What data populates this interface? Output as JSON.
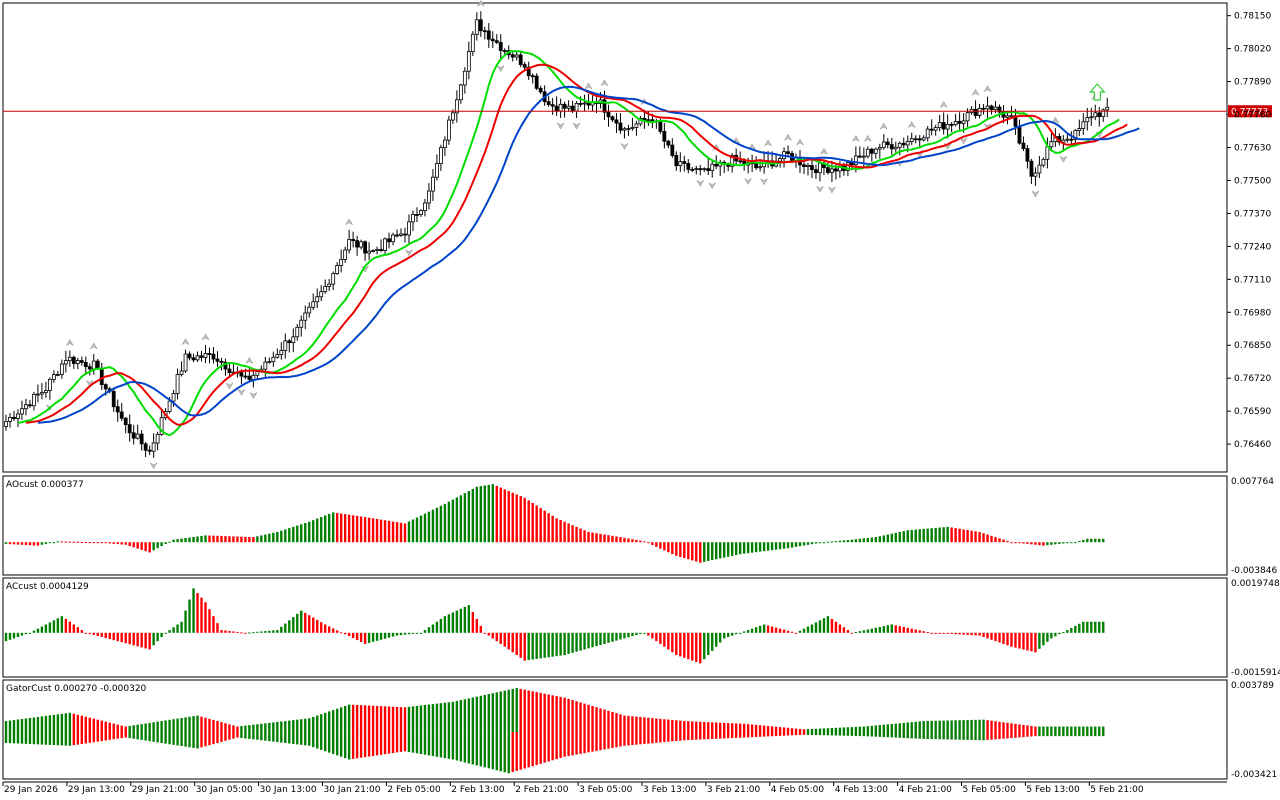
{
  "chart_data": [
    {
      "type": "candlestick",
      "panel": "main",
      "x_labels": [
        "29 Jan 2026",
        "29 Jan 13:00",
        "29 Jan 21:00",
        "30 Jan 05:00",
        "30 Jan 13:00",
        "30 Jan 21:00",
        "2 Feb 05:00",
        "2 Feb 13:00",
        "2 Feb 21:00",
        "3 Feb 05:00",
        "3 Feb 13:00",
        "3 Feb 21:00",
        "4 Feb 05:00",
        "4 Feb 13:00",
        "4 Feb 21:00",
        "5 Feb 05:00",
        "5 Feb 13:00",
        "5 Feb 21:00"
      ],
      "y_ticks": [
        "0.78150",
        "0.78020",
        "0.77890",
        "0.77760",
        "0.77630",
        "0.77500",
        "0.77370",
        "0.77240",
        "0.77110",
        "0.76980",
        "0.76850",
        "0.76720",
        "0.76590",
        "0.76460"
      ],
      "ylim": [
        0.7635,
        0.782
      ],
      "current_price": "0.77773",
      "current_price_value": 0.77773,
      "close_anchors": [
        [
          0,
          0.7655
        ],
        [
          10,
          0.7668
        ],
        [
          15,
          0.768
        ],
        [
          22,
          0.7677
        ],
        [
          30,
          0.7653
        ],
        [
          36,
          0.7643
        ],
        [
          45,
          0.768
        ],
        [
          52,
          0.7681
        ],
        [
          60,
          0.7671
        ],
        [
          65,
          0.7677
        ],
        [
          73,
          0.7691
        ],
        [
          80,
          0.7708
        ],
        [
          86,
          0.7726
        ],
        [
          92,
          0.7722
        ],
        [
          100,
          0.773
        ],
        [
          106,
          0.7745
        ],
        [
          112,
          0.7778
        ],
        [
          118,
          0.7812
        ],
        [
          124,
          0.7803
        ],
        [
          130,
          0.7796
        ],
        [
          136,
          0.778
        ],
        [
          142,
          0.7778
        ],
        [
          148,
          0.7782
        ],
        [
          155,
          0.777
        ],
        [
          162,
          0.7775
        ],
        [
          168,
          0.7756
        ],
        [
          175,
          0.7753
        ],
        [
          182,
          0.7758
        ],
        [
          188,
          0.7755
        ],
        [
          196,
          0.776
        ],
        [
          202,
          0.7755
        ],
        [
          210,
          0.7755
        ],
        [
          218,
          0.7763
        ],
        [
          225,
          0.7765
        ],
        [
          232,
          0.777
        ],
        [
          240,
          0.7775
        ],
        [
          246,
          0.778
        ],
        [
          252,
          0.7774
        ],
        [
          257,
          0.7752
        ],
        [
          262,
          0.7765
        ],
        [
          268,
          0.7768
        ],
        [
          272,
          0.7776
        ],
        [
          275,
          0.7777
        ]
      ],
      "series": [
        {
          "name": "",
          "color": "#00dd00",
          "period": 5
        },
        {
          "name": "",
          "color": "#ee0000",
          "period": 8
        },
        {
          "name": "",
          "color": "#0044cc",
          "period": 13
        }
      ]
    },
    {
      "type": "histogram",
      "panel": "AOcust",
      "label": "AOcust 0.000377",
      "y_ticks": [
        "0.007764",
        "-0.003846"
      ],
      "ylim": [
        -0.003846,
        0.007764
      ],
      "color_up": "#008000",
      "color_down": "#ff0000",
      "anchors": [
        [
          0,
          -0.0002
        ],
        [
          8,
          -0.0004
        ],
        [
          13,
          0.0001
        ],
        [
          22,
          0.0
        ],
        [
          30,
          -0.0003
        ],
        [
          36,
          -0.0012
        ],
        [
          42,
          0.0003
        ],
        [
          50,
          0.0008
        ],
        [
          62,
          0.0006
        ],
        [
          68,
          0.0012
        ],
        [
          76,
          0.0024
        ],
        [
          82,
          0.0035
        ],
        [
          92,
          0.0028
        ],
        [
          100,
          0.0022
        ],
        [
          110,
          0.0045
        ],
        [
          118,
          0.0065
        ],
        [
          122,
          0.0068
        ],
        [
          130,
          0.0052
        ],
        [
          138,
          0.0028
        ],
        [
          146,
          0.0012
        ],
        [
          154,
          0.0006
        ],
        [
          160,
          0.0001
        ],
        [
          168,
          -0.0016
        ],
        [
          174,
          -0.0024
        ],
        [
          184,
          -0.0014
        ],
        [
          196,
          -0.0007
        ],
        [
          205,
          0.0
        ],
        [
          212,
          0.0003
        ],
        [
          218,
          0.0006
        ],
        [
          226,
          0.0014
        ],
        [
          236,
          0.0018
        ],
        [
          244,
          0.0012
        ],
        [
          252,
          0.0
        ],
        [
          260,
          -0.0004
        ],
        [
          268,
          0.0
        ],
        [
          271,
          0.0004
        ]
      ]
    },
    {
      "type": "histogram",
      "panel": "ACcust",
      "label": "ACcust 0.0004129",
      "y_ticks": [
        "0.0019748",
        "-0.0015914"
      ],
      "ylim": [
        -0.0015914,
        0.0019748
      ],
      "color_up": "#008000",
      "color_down": "#ff0000",
      "anchors": [
        [
          0,
          -0.0003
        ],
        [
          6,
          0.0
        ],
        [
          14,
          0.0006
        ],
        [
          20,
          0.0
        ],
        [
          28,
          -0.0003
        ],
        [
          36,
          -0.0006
        ],
        [
          40,
          0.0
        ],
        [
          44,
          0.0004
        ],
        [
          47,
          0.0016
        ],
        [
          50,
          0.0011
        ],
        [
          54,
          0.0001
        ],
        [
          60,
          0.0
        ],
        [
          68,
          0.0001
        ],
        [
          74,
          0.0008
        ],
        [
          80,
          0.0003
        ],
        [
          90,
          -0.0004
        ],
        [
          98,
          -0.0001
        ],
        [
          104,
          0.0
        ],
        [
          110,
          0.0006
        ],
        [
          116,
          0.001
        ],
        [
          120,
          0.0
        ],
        [
          130,
          -0.001
        ],
        [
          140,
          -0.0008
        ],
        [
          150,
          -0.0004
        ],
        [
          160,
          0.0
        ],
        [
          168,
          -0.0008
        ],
        [
          174,
          -0.0011
        ],
        [
          180,
          -0.0002
        ],
        [
          190,
          0.0003
        ],
        [
          198,
          0.0
        ],
        [
          206,
          0.0006
        ],
        [
          212,
          0.0
        ],
        [
          222,
          0.0003
        ],
        [
          232,
          0.0
        ],
        [
          244,
          -0.0001
        ],
        [
          252,
          -0.0005
        ],
        [
          258,
          -0.0007
        ],
        [
          262,
          -0.0002
        ],
        [
          270,
          0.0004
        ]
      ]
    },
    {
      "type": "histogram",
      "panel": "GatorCust",
      "label": "GatorCust 0.000270 -0.000320",
      "y_ticks": [
        "0.003789",
        "-0.003421"
      ],
      "ylim": [
        -0.003421,
        0.003789
      ],
      "color_up": "#008000",
      "color_down": "#ff0000",
      "upper_anchors": [
        [
          0,
          0.0008
        ],
        [
          16,
          0.0014
        ],
        [
          30,
          0.0004
        ],
        [
          48,
          0.0012
        ],
        [
          58,
          0.0004
        ],
        [
          76,
          0.001
        ],
        [
          86,
          0.002
        ],
        [
          100,
          0.0018
        ],
        [
          112,
          0.0022
        ],
        [
          128,
          0.0032
        ],
        [
          140,
          0.0025
        ],
        [
          155,
          0.0012
        ],
        [
          170,
          0.0008
        ],
        [
          185,
          0.0006
        ],
        [
          200,
          0.0002
        ],
        [
          215,
          0.0004
        ],
        [
          230,
          0.0008
        ],
        [
          245,
          0.0009
        ],
        [
          258,
          0.0004
        ],
        [
          275,
          0.0004
        ]
      ],
      "lower_anchors": [
        [
          0,
          -0.0008
        ],
        [
          16,
          -0.001
        ],
        [
          30,
          -0.0004
        ],
        [
          48,
          -0.0012
        ],
        [
          58,
          -0.0004
        ],
        [
          76,
          -0.001
        ],
        [
          86,
          -0.002
        ],
        [
          100,
          -0.0014
        ],
        [
          112,
          -0.002
        ],
        [
          126,
          -0.003
        ],
        [
          140,
          -0.0018
        ],
        [
          155,
          -0.001
        ],
        [
          170,
          -0.0006
        ],
        [
          185,
          -0.0004
        ],
        [
          200,
          -0.0002
        ],
        [
          215,
          -0.0003
        ],
        [
          230,
          -0.0005
        ],
        [
          245,
          -0.0006
        ],
        [
          258,
          -0.0003
        ],
        [
          275,
          -0.0003
        ]
      ]
    }
  ]
}
